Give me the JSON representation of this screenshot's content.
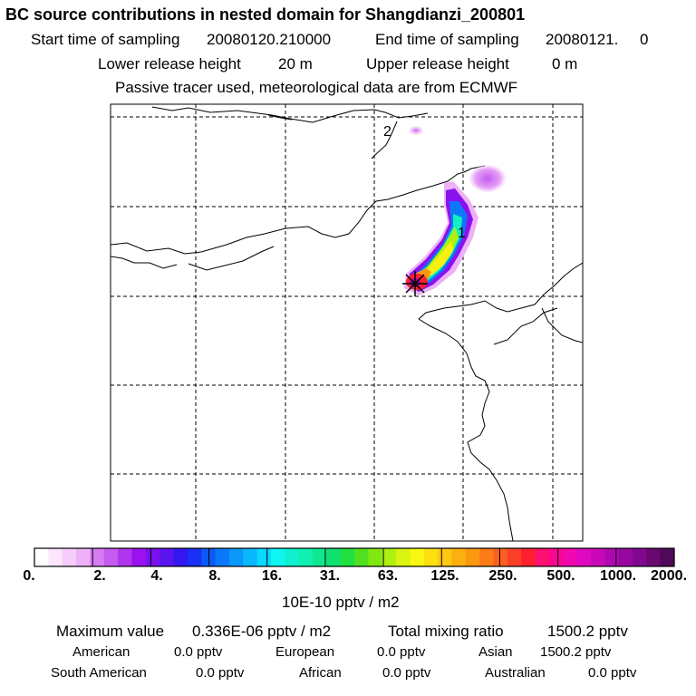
{
  "header": {
    "title": "BC  source contributions in nested domain for Shangdianzi_200801",
    "start_label": "Start time of sampling",
    "start_value": "20080120.210000",
    "end_label": "End time of sampling",
    "end_value": "20080121.     0",
    "lower_label": "Lower release height",
    "lower_value": "20 m",
    "upper_label": "Upper release height",
    "upper_value": "0 m",
    "tracer_note": "Passive tracer used, meteorological data are from ECMWF"
  },
  "map": {
    "markers": [
      {
        "label": "1"
      },
      {
        "label": "2"
      }
    ]
  },
  "colorbar": {
    "labels": [
      "0.",
      "2.",
      "4.",
      "8.",
      "16.",
      "31.",
      "63.",
      "125.",
      "250.",
      "500.",
      "1000.",
      "2000."
    ],
    "unit": "10E-10 pptv / m2",
    "colors": [
      "#ffffff",
      "#fbe6fd",
      "#f5ccfb",
      "#eeb0f7",
      "#d87cf1",
      "#c55cf0",
      "#b035ef",
      "#9a12ee",
      "#7a10ef",
      "#5a14f0",
      "#3416f0",
      "#1a30f2",
      "#0a58f6",
      "#0a78f8",
      "#0a98fa",
      "#0ab8fc",
      "#0ad8fe",
      "#10f4f2",
      "#10f0d0",
      "#10f0b0",
      "#10e890",
      "#10e070",
      "#20e040",
      "#50e020",
      "#80e810",
      "#b0f010",
      "#d8f410",
      "#f8f810",
      "#fce010",
      "#fcc810",
      "#fcb010",
      "#fc9810",
      "#fc7c18",
      "#fc6020",
      "#fc4028",
      "#fc2030",
      "#fc1070",
      "#f80890",
      "#f008b0",
      "#e008c0",
      "#c808b8",
      "#b008b0",
      "#9808a0",
      "#800890",
      "#680870",
      "#500858"
    ]
  },
  "stats": {
    "max_label": "Maximum value",
    "max_value": "0.336E-06 pptv / m2",
    "total_label": "Total mixing ratio",
    "total_value": "1500.2 pptv",
    "regions": [
      {
        "name": "American",
        "value": "0.0 pptv"
      },
      {
        "name": "European",
        "value": "0.0 pptv"
      },
      {
        "name": "Asian",
        "value": "1500.2 pptv"
      },
      {
        "name": "South American",
        "value": "0.0 pptv"
      },
      {
        "name": "African",
        "value": "0.0 pptv"
      },
      {
        "name": "Australian",
        "value": "0.0 pptv"
      }
    ]
  }
}
